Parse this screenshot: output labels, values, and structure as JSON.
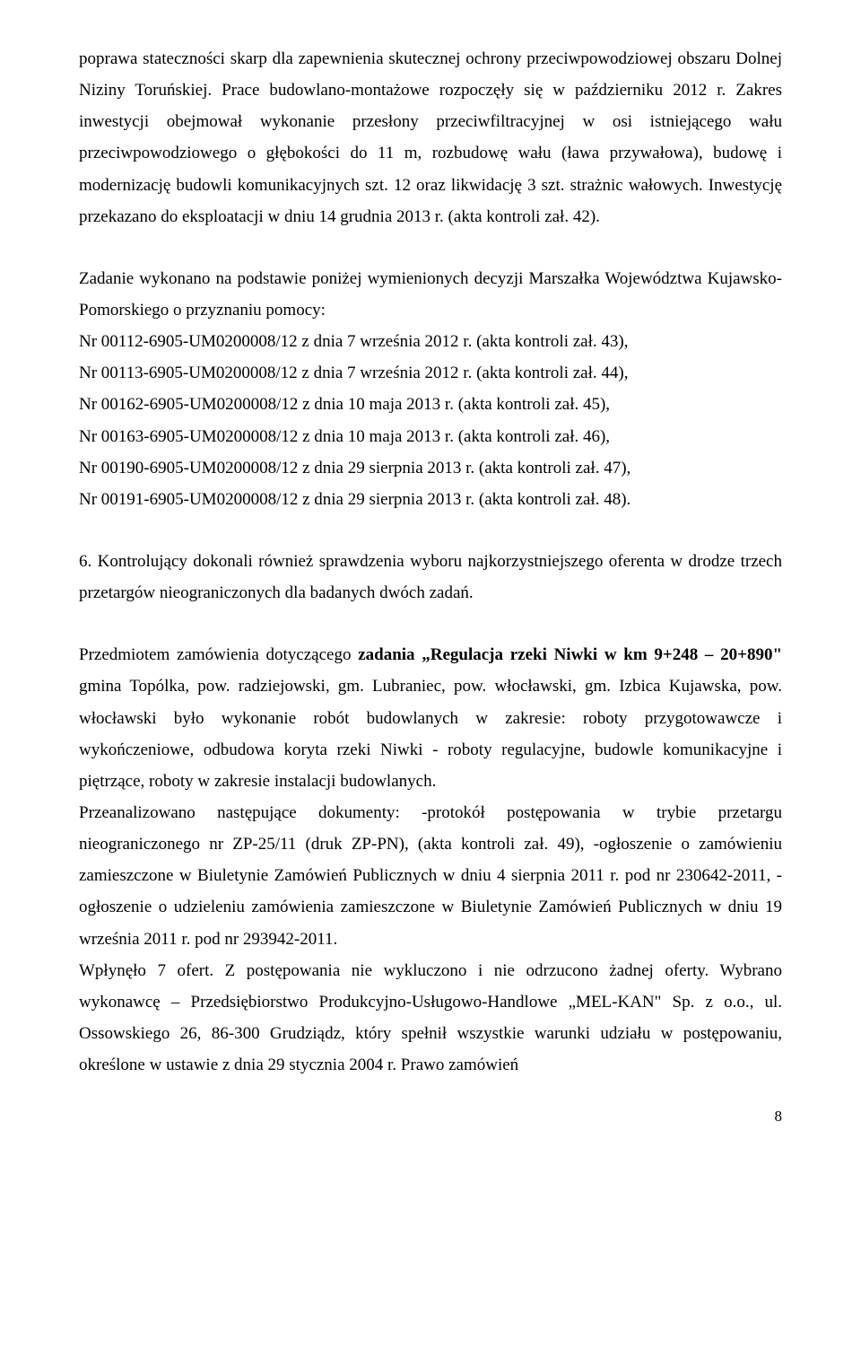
{
  "para1": "poprawa stateczności skarp dla zapewnienia skutecznej ochrony przeciwpowodziowej obszaru Dolnej Niziny Toruńskiej.  Prace budowlano-montażowe rozpoczęły się w październiku 2012 r. Zakres inwestycji obejmował wykonanie przesłony przeciwfiltracyjnej w osi istniejącego wału przeciwpowodziowego o głębokości do 11 m, rozbudowę wału (ława przywałowa), budowę i modernizację budowli komunikacyjnych szt. 12 oraz likwidację 3 szt. strażnic wałowych. Inwestycję przekazano do eksploatacji w dniu 14 grudnia 2013 r. (akta kontroli zał. 42).",
  "para2": "Zadanie wykonano na podstawie poniżej wymienionych decyzji Marszałka Województwa Kujawsko-Pomorskiego o przyznaniu pomocy:",
  "list1": "Nr 00112-6905-UM0200008/12 z dnia 7 września 2012 r. (akta kontroli zał. 43),",
  "list2": "Nr 00113-6905-UM0200008/12 z dnia 7 września 2012 r. (akta kontroli zał. 44),",
  "list3": "Nr 00162-6905-UM0200008/12 z dnia 10 maja 2013 r. (akta kontroli zał. 45),",
  "list4": "Nr 00163-6905-UM0200008/12 z dnia 10 maja 2013 r. (akta kontroli zał. 46),",
  "list5": "Nr 00190-6905-UM0200008/12 z dnia 29 sierpnia 2013 r. (akta kontroli zał. 47),",
  "list6": "Nr 00191-6905-UM0200008/12 z dnia 29 sierpnia 2013 r. (akta kontroli zał. 48).",
  "para3": "6. Kontrolujący dokonali również sprawdzenia wyboru najkorzystniejszego oferenta w drodze trzech przetargów nieograniczonych dla badanych dwóch zadań.",
  "para4a": "Przedmiotem zamówienia dotyczącego ",
  "para4b": "zadania „Regulacja rzeki Niwki w km 9+248 – 20+890\"",
  "para4c": " gmina Topólka, pow. radziejowski, gm. Lubraniec, pow. włocławski, gm. Izbica Kujawska, pow. włocławski było wykonanie robót budowlanych w zakresie: roboty przygotowawcze i wykończeniowe, odbudowa koryta rzeki Niwki - roboty regulacyjne, budowle komunikacyjne i piętrzące, roboty w zakresie instalacji budowlanych.",
  "para5": "Przeanalizowano następujące dokumenty: -protokół postępowania w trybie przetargu nieograniczonego nr ZP-25/11 (druk ZP-PN), (akta kontroli zał. 49), -ogłoszenie o zamówieniu zamieszczone w Biuletynie Zamówień Publicznych w dniu 4 sierpnia 2011 r. pod nr 230642-2011, -ogłoszenie o udzieleniu zamówienia zamieszczone w Biuletynie Zamówień Publicznych w dniu 19 września 2011 r. pod nr 293942-2011.",
  "para6": "Wpłynęło 7 ofert. Z postępowania nie wykluczono i nie odrzucono żadnej oferty. Wybrano wykonawcę – Przedsiębiorstwo Produkcyjno-Usługowo-Handlowe „MEL-KAN\" Sp. z o.o., ul. Ossowskiego 26, 86-300 Grudziądz, który spełnił wszystkie warunki udziału w postępowaniu, określone w ustawie z dnia 29 stycznia 2004 r. Prawo zamówień",
  "pageNumber": "8"
}
